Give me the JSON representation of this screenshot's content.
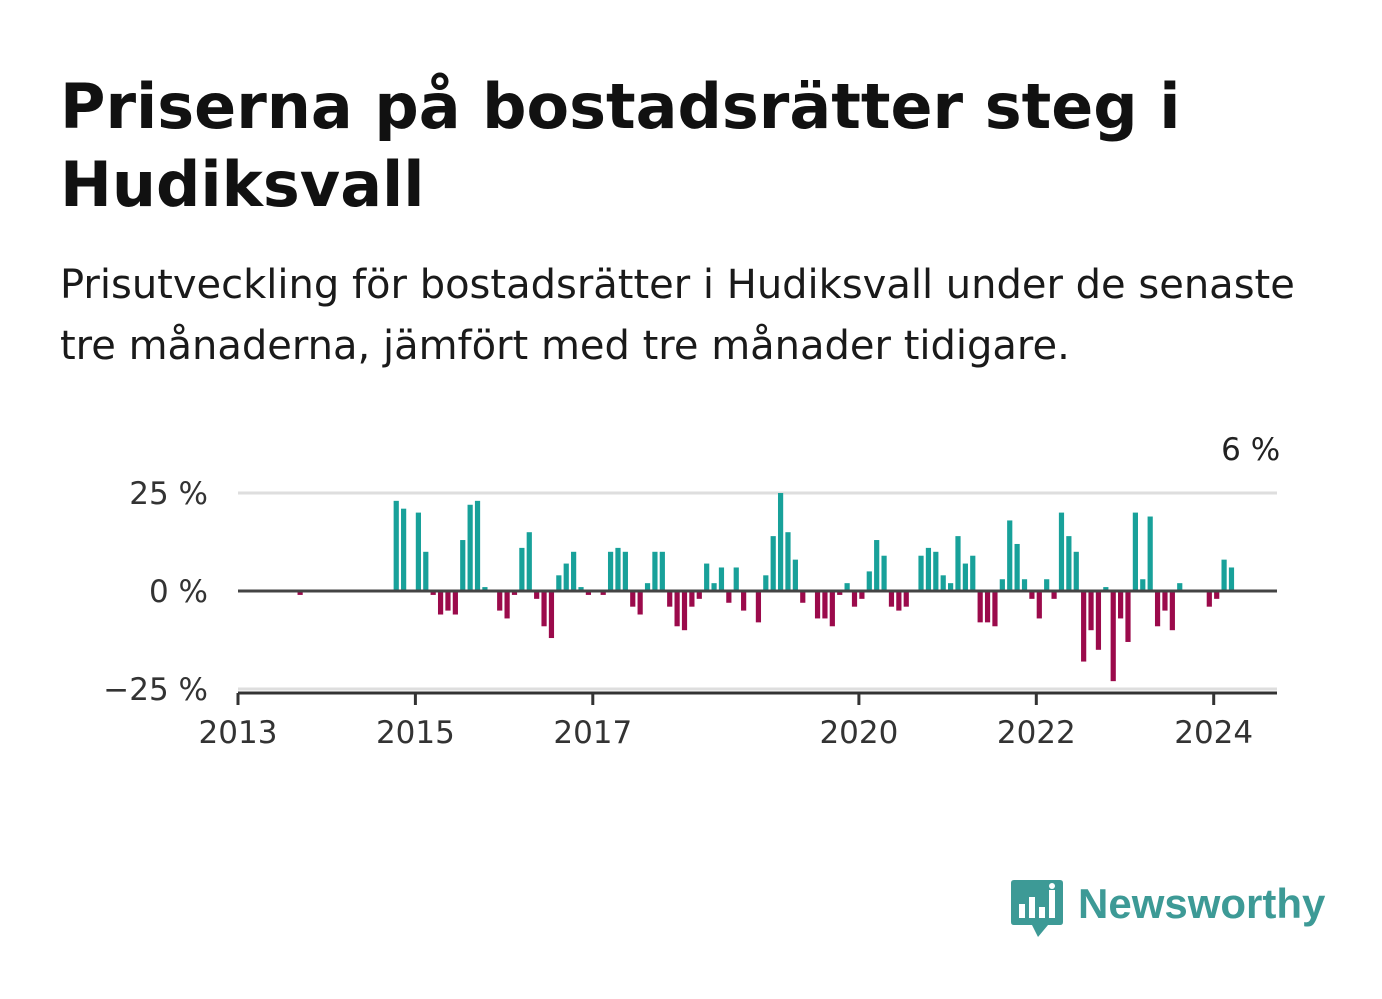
{
  "title": "Priserna på bostadsrätter steg i Hudiksvall",
  "subtitle": "Prisutveckling för bostadsrätter i Hudiksvall under de senaste tre månaderna, jämfört med tre månader tidigare.",
  "brand": {
    "name": "Newsworthy",
    "color": "#3d9a96",
    "icon": "newsworthy-logo-icon"
  },
  "chart_data": {
    "type": "bar",
    "x_start": 2013.0,
    "x_step_months": 1,
    "ylim": [
      -25,
      25
    ],
    "y_ticks": [
      {
        "value": 25,
        "label": "25 %"
      },
      {
        "value": 0,
        "label": "0 %"
      },
      {
        "value": -25,
        "label": "−25 %"
      }
    ],
    "x_ticks": [
      {
        "value": 2013,
        "label": "2013"
      },
      {
        "value": 2015,
        "label": "2015"
      },
      {
        "value": 2017,
        "label": "2017"
      },
      {
        "value": 2020,
        "label": "2020"
      },
      {
        "value": 2022,
        "label": "2022"
      },
      {
        "value": 2024,
        "label": "2024"
      }
    ],
    "positive_color": "#18a19a",
    "negative_color": "#9b0a4b",
    "grid": true,
    "annotation": {
      "text": "6 %",
      "index": 137
    },
    "values": [
      null,
      null,
      null,
      null,
      null,
      null,
      null,
      null,
      -1,
      null,
      null,
      null,
      null,
      null,
      null,
      null,
      null,
      null,
      null,
      null,
      null,
      23,
      21,
      null,
      20,
      10,
      -1,
      -6,
      -5,
      -6,
      13,
      22,
      23,
      1,
      null,
      -5,
      -7,
      -1,
      11,
      15,
      -2,
      -9,
      -12,
      4,
      7,
      10,
      1,
      -1,
      null,
      -1,
      10,
      11,
      10,
      -4,
      -6,
      2,
      10,
      10,
      -4,
      -9,
      -10,
      -4,
      -2,
      7,
      2,
      6,
      -3,
      6,
      -5,
      null,
      -8,
      4,
      14,
      25,
      15,
      8,
      -3,
      null,
      -7,
      -7,
      -9,
      -1,
      2,
      -4,
      -2,
      5,
      13,
      9,
      -4,
      -5,
      -4,
      null,
      9,
      11,
      10,
      4,
      2,
      14,
      7,
      9,
      -8,
      -8,
      -9,
      3,
      18,
      12,
      3,
      -2,
      -7,
      3,
      -2,
      20,
      14,
      10,
      -18,
      -10,
      -15,
      1,
      -23,
      -7,
      -13,
      20,
      3,
      19,
      -9,
      -5,
      -10,
      2,
      null,
      null,
      null,
      -4,
      -2,
      8,
      6
    ]
  }
}
